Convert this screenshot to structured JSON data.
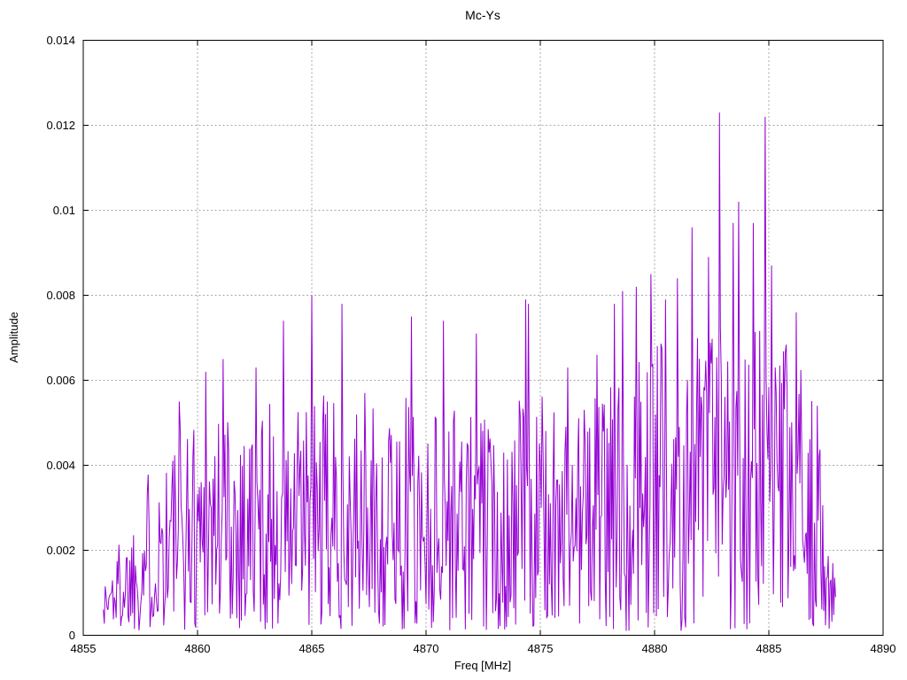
{
  "chart_data": {
    "type": "line",
    "title": "Mc-Ys",
    "xlabel": "Freq [MHz]",
    "ylabel": "Amplitude",
    "xlim": [
      4855,
      4890
    ],
    "ylim": [
      0,
      0.014
    ],
    "xticks": [
      4855,
      4860,
      4865,
      4870,
      4875,
      4880,
      4885,
      4890
    ],
    "xtick_labels": [
      "4855",
      "4860",
      "4865",
      "4870",
      "4875",
      "4880",
      "4885",
      "4890"
    ],
    "yticks": [
      0,
      0.002,
      0.004,
      0.006,
      0.008,
      0.01,
      0.012,
      0.014
    ],
    "ytick_labels": [
      "0",
      "0.002",
      "0.004",
      "0.006",
      "0.008",
      "0.01",
      "0.012",
      "0.014"
    ],
    "grid": true,
    "grid_color": "#a8a8a8",
    "border_color": "#000000",
    "background_color": "#ffffff",
    "legend": "none",
    "series": [
      {
        "name": "Mc-Ys",
        "line_color": "#9400d3",
        "x_start": 4855.88,
        "x_end": 4887.92,
        "dx": 0.04,
        "noise_seed": 1337,
        "noise_power": 1.2,
        "noise_floor": 0.0001,
        "envelope": [
          [
            4855.88,
            0.0013
          ],
          [
            4856.3,
            0.0021
          ],
          [
            4857.0,
            0.0027
          ],
          [
            4857.6,
            0.0037
          ],
          [
            4858.2,
            0.0044
          ],
          [
            4859.0,
            0.005
          ],
          [
            4860.0,
            0.0054
          ],
          [
            4861.0,
            0.0058
          ],
          [
            4862.0,
            0.0054
          ],
          [
            4863.0,
            0.0056
          ],
          [
            4864.0,
            0.0051
          ],
          [
            4865.0,
            0.0058
          ],
          [
            4866.0,
            0.0056
          ],
          [
            4867.0,
            0.0052
          ],
          [
            4868.0,
            0.0054
          ],
          [
            4869.0,
            0.0057
          ],
          [
            4870.0,
            0.0054
          ],
          [
            4871.0,
            0.0057
          ],
          [
            4872.0,
            0.0054
          ],
          [
            4873.0,
            0.005
          ],
          [
            4874.0,
            0.0057
          ],
          [
            4875.0,
            0.0056
          ],
          [
            4876.0,
            0.0058
          ],
          [
            4877.0,
            0.0057
          ],
          [
            4878.0,
            0.006
          ],
          [
            4879.0,
            0.0066
          ],
          [
            4880.0,
            0.007
          ],
          [
            4881.0,
            0.0073
          ],
          [
            4882.0,
            0.0076
          ],
          [
            4883.0,
            0.0078
          ],
          [
            4884.0,
            0.0077
          ],
          [
            4885.0,
            0.0074
          ],
          [
            4886.0,
            0.0067
          ],
          [
            4886.8,
            0.0058
          ],
          [
            4887.2,
            0.0048
          ],
          [
            4887.6,
            0.0028
          ],
          [
            4887.92,
            0.0013
          ]
        ],
        "peaks": [
          [
            4859.2,
            0.0055
          ],
          [
            4860.35,
            0.0062
          ],
          [
            4861.1,
            0.0065
          ],
          [
            4862.55,
            0.0063
          ],
          [
            4863.75,
            0.0074
          ],
          [
            4865.0,
            0.008
          ],
          [
            4866.3,
            0.0078
          ],
          [
            4867.3,
            0.0057
          ],
          [
            4869.35,
            0.0075
          ],
          [
            4870.75,
            0.0074
          ],
          [
            4872.2,
            0.0071
          ],
          [
            4874.35,
            0.0079
          ],
          [
            4874.5,
            0.0078
          ],
          [
            4876.2,
            0.0063
          ],
          [
            4877.5,
            0.0066
          ],
          [
            4878.25,
            0.0078
          ],
          [
            4878.6,
            0.0081
          ],
          [
            4879.2,
            0.0082
          ],
          [
            4879.85,
            0.0085
          ],
          [
            4880.5,
            0.0079
          ],
          [
            4881.0,
            0.0084
          ],
          [
            4881.65,
            0.0096
          ],
          [
            4882.35,
            0.0089
          ],
          [
            4882.85,
            0.0123
          ],
          [
            4883.45,
            0.0097
          ],
          [
            4883.7,
            0.0102
          ],
          [
            4884.3,
            0.0097
          ],
          [
            4884.85,
            0.0122
          ],
          [
            4885.1,
            0.0087
          ],
          [
            4886.2,
            0.0076
          ],
          [
            4887.1,
            0.0054
          ]
        ]
      }
    ]
  }
}
